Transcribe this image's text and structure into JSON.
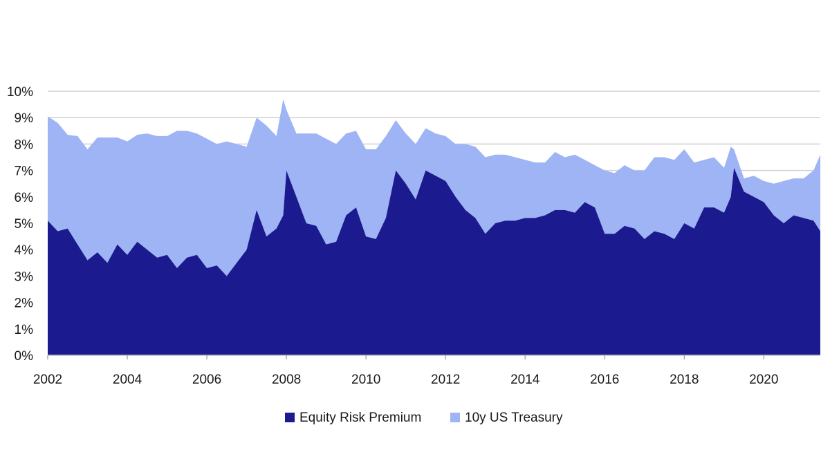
{
  "chart_data": {
    "type": "area",
    "stacked": true,
    "title": "",
    "xlabel": "",
    "ylabel": "",
    "x_unit": "year",
    "xlim": [
      2002,
      2021.42
    ],
    "ylim": [
      0,
      10
    ],
    "y_ticks": [
      0,
      1,
      2,
      3,
      4,
      5,
      6,
      7,
      8,
      9,
      10
    ],
    "y_tick_labels": [
      "0%",
      "1%",
      "2%",
      "3%",
      "4%",
      "5%",
      "6%",
      "7%",
      "8%",
      "9%",
      "10%"
    ],
    "x_ticks": [
      2002,
      2004,
      2006,
      2008,
      2010,
      2012,
      2014,
      2016,
      2018,
      2020
    ],
    "x_tick_labels": [
      "2002",
      "2004",
      "2006",
      "2008",
      "2010",
      "2012",
      "2014",
      "2016",
      "2018",
      "2020"
    ],
    "grid": "horizontal",
    "legend_position": "bottom",
    "x": [
      2002.0,
      2002.25,
      2002.5,
      2002.75,
      2003.0,
      2003.25,
      2003.5,
      2003.75,
      2004.0,
      2004.25,
      2004.5,
      2004.75,
      2005.0,
      2005.25,
      2005.5,
      2005.75,
      2006.0,
      2006.25,
      2006.5,
      2006.75,
      2007.0,
      2007.25,
      2007.5,
      2007.75,
      2007.92,
      2008.0,
      2008.25,
      2008.5,
      2008.75,
      2009.0,
      2009.25,
      2009.5,
      2009.75,
      2010.0,
      2010.25,
      2010.5,
      2010.75,
      2011.0,
      2011.25,
      2011.5,
      2011.75,
      2012.0,
      2012.25,
      2012.5,
      2012.75,
      2013.0,
      2013.25,
      2013.5,
      2013.75,
      2014.0,
      2014.25,
      2014.5,
      2014.75,
      2015.0,
      2015.25,
      2015.5,
      2015.75,
      2016.0,
      2016.25,
      2016.5,
      2016.75,
      2017.0,
      2017.25,
      2017.5,
      2017.75,
      2018.0,
      2018.25,
      2018.5,
      2018.75,
      2019.0,
      2019.17,
      2019.25,
      2019.5,
      2019.75,
      2020.0,
      2020.25,
      2020.5,
      2020.75,
      2021.0,
      2021.25,
      2021.42
    ],
    "series": [
      {
        "name": "Equity Risk Premium",
        "color": "#1b1a8f",
        "values": [
          5.1,
          4.7,
          4.8,
          4.2,
          3.6,
          3.9,
          3.5,
          4.2,
          3.8,
          4.3,
          4.0,
          3.7,
          3.8,
          3.3,
          3.7,
          3.8,
          3.3,
          3.4,
          3.0,
          3.5,
          4.0,
          5.5,
          4.5,
          4.8,
          5.3,
          7.0,
          6.0,
          5.0,
          4.9,
          4.2,
          4.3,
          5.3,
          5.6,
          4.5,
          4.4,
          5.2,
          7.0,
          6.5,
          5.9,
          7.0,
          6.8,
          6.6,
          6.0,
          5.5,
          5.2,
          4.6,
          5.0,
          5.1,
          5.1,
          5.2,
          5.2,
          5.3,
          5.5,
          5.5,
          5.4,
          5.8,
          5.6,
          4.6,
          4.6,
          4.9,
          4.8,
          4.4,
          4.7,
          4.6,
          4.4,
          5.0,
          4.8,
          5.6,
          5.6,
          5.4,
          6.0,
          7.1,
          6.2,
          6.0,
          5.8,
          5.3,
          5.0,
          5.3,
          5.2,
          5.1,
          4.7
        ]
      },
      {
        "name": "10y US Treasury",
        "color": "#9eb4f5",
        "values": [
          3.95,
          4.1,
          3.55,
          4.1,
          4.2,
          4.35,
          4.75,
          4.05,
          4.3,
          4.05,
          4.4,
          4.6,
          4.5,
          5.2,
          4.8,
          4.6,
          4.9,
          4.6,
          5.1,
          4.5,
          3.9,
          3.5,
          4.2,
          3.5,
          4.4,
          2.3,
          2.4,
          3.4,
          3.5,
          4.0,
          3.7,
          3.1,
          2.9,
          3.3,
          3.4,
          3.1,
          1.9,
          1.9,
          2.1,
          1.6,
          1.6,
          1.7,
          2.0,
          2.5,
          2.7,
          2.9,
          2.6,
          2.5,
          2.4,
          2.2,
          2.1,
          2.0,
          2.2,
          2.0,
          2.2,
          1.6,
          1.6,
          2.4,
          2.3,
          2.3,
          2.2,
          2.6,
          2.8,
          2.9,
          3.0,
          2.8,
          2.5,
          1.8,
          1.9,
          1.7,
          1.9,
          0.7,
          0.5,
          0.8,
          0.8,
          1.2,
          1.6,
          1.4,
          1.5,
          1.9,
          2.9
        ]
      }
    ]
  }
}
